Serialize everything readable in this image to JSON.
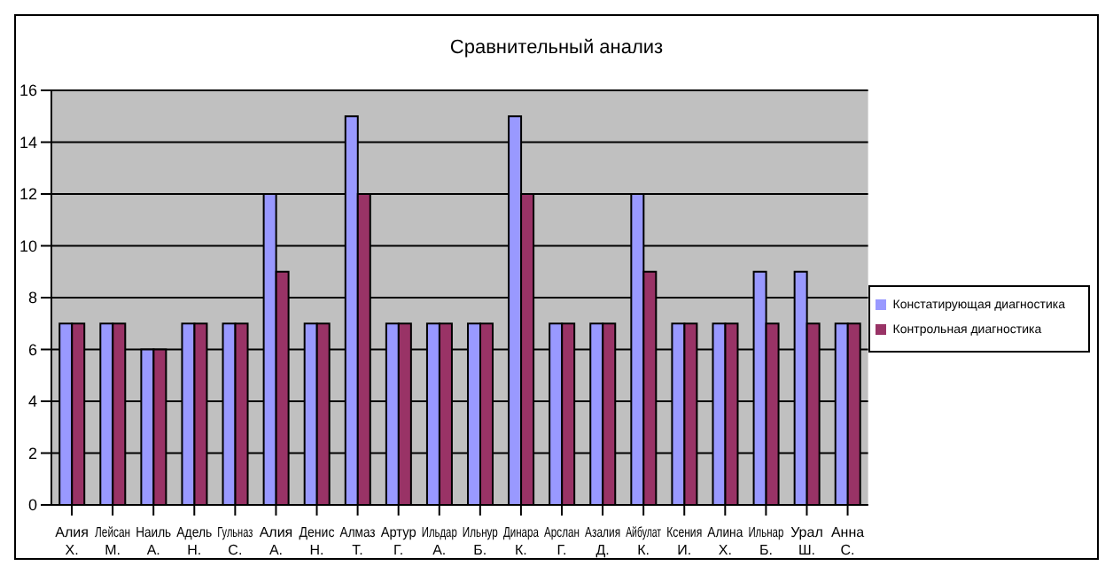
{
  "chart_data": {
    "type": "bar",
    "title": "Сравнительный анализ",
    "categories": [
      "Алия Х.",
      "Лейсан М.",
      "Наиль А.",
      "Адель Н.",
      "Гульназ С.",
      "Алия А.",
      "Денис Н.",
      "Алмаз Т.",
      "Артур Г.",
      "Ильдар А.",
      "Ильнур Б.",
      "Динара К.",
      "Арслан Г.",
      "Азалия Д.",
      "Айбулат К.",
      "Ксения И.",
      "Алина Х.",
      "Ильнар Б.",
      "Урал Ш.",
      "Анна С."
    ],
    "series": [
      {
        "name": "Констатирующая диагностика",
        "color": "#9999ff",
        "values": [
          7,
          7,
          6,
          7,
          7,
          12,
          7,
          15,
          7,
          7,
          7,
          15,
          7,
          7,
          12,
          7,
          7,
          9,
          9,
          7
        ]
      },
      {
        "name": "Контрольная диагностика",
        "color": "#993366",
        "values": [
          7,
          7,
          6,
          7,
          7,
          9,
          7,
          12,
          7,
          7,
          7,
          12,
          7,
          7,
          9,
          7,
          7,
          7,
          7,
          7
        ]
      }
    ],
    "ylim": [
      0,
      16
    ],
    "yticks": [
      0,
      2,
      4,
      6,
      8,
      10,
      12,
      14,
      16
    ],
    "grid": "y",
    "legend": "right"
  }
}
